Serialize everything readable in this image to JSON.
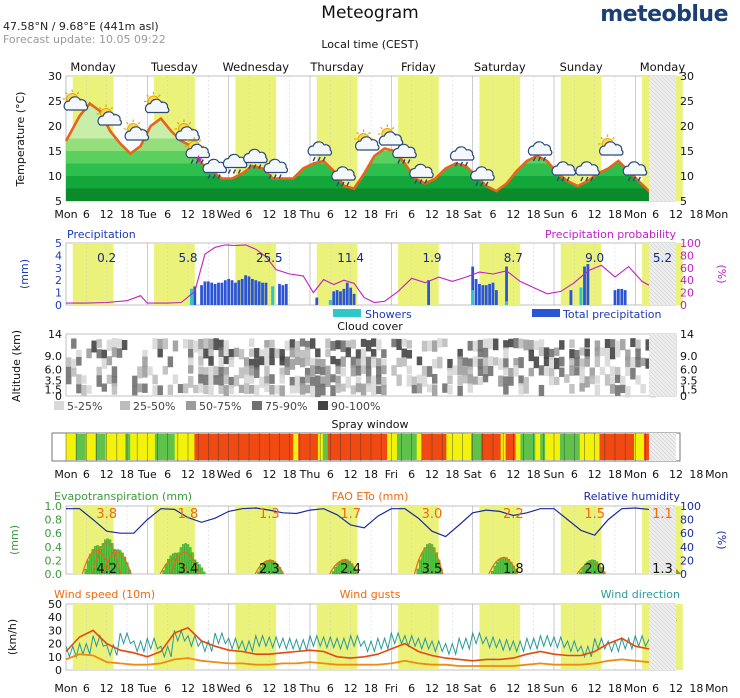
{
  "header": {
    "title": "Meteogram",
    "coords": "47.58°N / 9.68°E (441m asl)",
    "forecast_update": "Forecast update: 10.05 09:22",
    "brand": "meteoblue",
    "local_time": "Local time (CEST)"
  },
  "days": [
    "Monday",
    "Tuesday",
    "Wednesday",
    "Thursday",
    "Friday",
    "Saturday",
    "Sunday",
    "Monday"
  ],
  "time_axis": {
    "start_hour": 6,
    "end_hour": 186,
    "label_step": 6,
    "labels": [
      "Mon",
      "6",
      "12",
      "18",
      "Tue",
      "6",
      "12",
      "18",
      "Wed",
      "6",
      "12",
      "18",
      "Thu",
      "6",
      "12",
      "18",
      "Fri",
      "6",
      "12",
      "18",
      "Sat",
      "6",
      "12",
      "18",
      "Sun",
      "6",
      "12",
      "18",
      "Mon",
      "6",
      "12",
      "18",
      "Mon"
    ]
  },
  "colors": {
    "day_band": "#eaf27a",
    "temp_line": "#e8641a",
    "temp_bands": [
      "#0a8a2a",
      "#13a63a",
      "#2cbf4d",
      "#5ad05f",
      "#95de7c",
      "#c8eeaa"
    ],
    "precip_bar": "#2c55d6",
    "showers_bar": "#2ec8c8",
    "precip_prob_line": "#c020c8",
    "cloud_bands": [
      "#d8d8d8",
      "#bcbcbc",
      "#9c9c9c",
      "#707070",
      "#444444"
    ],
    "spray": {
      "G": "#5fc24a",
      "Y": "#f2f20a",
      "R": "#f04a12"
    },
    "et_fill": "#4fc93e",
    "eto_line": "#ee6a10",
    "humidity_line": "#1a2aa0",
    "wind_speed_line": "#f08a10",
    "wind_gust_line": "#e14b10",
    "wind_dir_line": "#2a9a9a",
    "title_green": "#3a9a3a",
    "title_orange": "#ee6a10",
    "title_navy": "#1a2aa0",
    "title_teal": "#2a9a9a",
    "title_blue": "#1a3ab8",
    "title_magenta": "#c020c8"
  },
  "chart_data": [
    {
      "id": "temperature",
      "type": "line",
      "ylabel": "Temperature (°C)",
      "ylim": [
        5,
        30
      ],
      "yticks": [
        5,
        10,
        15,
        20,
        25,
        30
      ],
      "x": [
        6,
        10,
        13,
        16,
        19,
        22,
        25,
        28,
        31,
        34,
        37,
        40,
        43,
        46,
        49,
        52,
        55,
        58,
        61,
        64,
        67,
        70,
        73,
        76,
        79,
        82,
        85,
        88,
        91,
        94,
        97,
        100,
        103,
        106,
        109,
        112,
        115,
        118,
        121,
        124,
        127,
        130,
        133,
        136,
        139,
        142,
        145,
        148,
        151,
        154,
        157,
        160,
        163,
        166,
        169,
        172,
        175,
        178,
        181,
        184
      ],
      "values": [
        17,
        22,
        24.5,
        23,
        19,
        16.5,
        14.5,
        16,
        20,
        21.5,
        19,
        17,
        16,
        12.5,
        11,
        9.5,
        9.5,
        10.5,
        12,
        11.5,
        9.5,
        9.5,
        9.5,
        11.5,
        12.5,
        13,
        11,
        8,
        7.5,
        10.5,
        14,
        15.5,
        15,
        12.5,
        9.5,
        8.5,
        9.5,
        11.5,
        12.5,
        12,
        10,
        8,
        7,
        8.5,
        11,
        13,
        14,
        13,
        10.5,
        9,
        8,
        9,
        10.5,
        11.5,
        13,
        11,
        9,
        7,
        8,
        10
      ],
      "weather_icons": [
        {
          "x": 9,
          "icon": "sun-cloud-icon"
        },
        {
          "x": 19,
          "icon": "sun-cloud-icon"
        },
        {
          "x": 27,
          "icon": "sun-cloud-icon"
        },
        {
          "x": 33,
          "icon": "sun-cloud-icon"
        },
        {
          "x": 42,
          "icon": "sun-cloud-icon"
        },
        {
          "x": 45,
          "icon": "thunder-rain-icon"
        },
        {
          "x": 50,
          "icon": "cloud-rain-icon"
        },
        {
          "x": 56,
          "icon": "cloud-rain-icon"
        },
        {
          "x": 62,
          "icon": "cloud-rain-icon"
        },
        {
          "x": 68,
          "icon": "cloud-rain-icon"
        },
        {
          "x": 81,
          "icon": "cloud-rain-icon"
        },
        {
          "x": 88,
          "icon": "cloud-rain-icon"
        },
        {
          "x": 95,
          "icon": "sun-cloud-icon"
        },
        {
          "x": 102,
          "icon": "sun-cloud-icon"
        },
        {
          "x": 106,
          "icon": "cloud-rain-icon"
        },
        {
          "x": 111,
          "icon": "cloud-rain-icon"
        },
        {
          "x": 123,
          "icon": "cloud-rain-icon"
        },
        {
          "x": 129,
          "icon": "cloud-rain-icon"
        },
        {
          "x": 146,
          "icon": "cloud-rain-icon"
        },
        {
          "x": 153,
          "icon": "cloud-rain-icon"
        },
        {
          "x": 160,
          "icon": "cloud-rain-icon"
        },
        {
          "x": 167,
          "icon": "sun-cloud-icon"
        },
        {
          "x": 174,
          "icon": "cloud-rain-icon"
        }
      ]
    },
    {
      "id": "precipitation",
      "type": "bar",
      "title": "Precipitation",
      "title_right": "Precipitation probability",
      "ylabel": "(mm)",
      "ylabel_right": "(%)",
      "ylim": [
        0,
        5
      ],
      "yticks": [
        0,
        1,
        2,
        3,
        4,
        5
      ],
      "yticks_right": [
        0,
        20,
        40,
        60,
        80,
        100
      ],
      "daily_totals": [
        {
          "x": 18,
          "label": "0.2"
        },
        {
          "x": 42,
          "label": "5.8"
        },
        {
          "x": 66,
          "label": "25.5"
        },
        {
          "x": 90,
          "label": "11.4"
        },
        {
          "x": 114,
          "label": "1.9"
        },
        {
          "x": 138,
          "label": "8.7"
        },
        {
          "x": 162,
          "label": "9.0"
        },
        {
          "x": 182,
          "label": "5.2"
        }
      ],
      "bars": [
        [
          43,
          1.3
        ],
        [
          44,
          1.5
        ],
        [
          46,
          1.6
        ],
        [
          47,
          1.9
        ],
        [
          48,
          1.9
        ],
        [
          49,
          1.8
        ],
        [
          50,
          1.7
        ],
        [
          51,
          1.8
        ],
        [
          52,
          1.8
        ],
        [
          53,
          2.0
        ],
        [
          54,
          2.1
        ],
        [
          55,
          2.0
        ],
        [
          56,
          1.8
        ],
        [
          57,
          2.0
        ],
        [
          58,
          2.1
        ],
        [
          59,
          2.4
        ],
        [
          60,
          2.3
        ],
        [
          61,
          2.1
        ],
        [
          62,
          2.0
        ],
        [
          63,
          1.9
        ],
        [
          64,
          1.8
        ],
        [
          65,
          1.8
        ],
        [
          67,
          1.5
        ],
        [
          69,
          1.7
        ],
        [
          70,
          1.6
        ],
        [
          71,
          1.7
        ],
        [
          80,
          0.6
        ],
        [
          84,
          0.4
        ],
        [
          85,
          1.1
        ],
        [
          86,
          1.2
        ],
        [
          87,
          1.1
        ],
        [
          88,
          1.3
        ],
        [
          89,
          1.8
        ],
        [
          90,
          1.4
        ],
        [
          91,
          0.9
        ],
        [
          113,
          2.0
        ],
        [
          126,
          3.1
        ],
        [
          127,
          2.1
        ],
        [
          128,
          1.7
        ],
        [
          129,
          1.6
        ],
        [
          130,
          1.6
        ],
        [
          131,
          1.7
        ],
        [
          132,
          1.8
        ],
        [
          133,
          1.2
        ],
        [
          136,
          3.1
        ],
        [
          155,
          1.2
        ],
        [
          158,
          1.4
        ],
        [
          159,
          3.1
        ],
        [
          160,
          3.3
        ],
        [
          168,
          1.2
        ],
        [
          169,
          1.3
        ],
        [
          170,
          1.3
        ],
        [
          171,
          1.2
        ],
        [
          179,
          1.0
        ],
        [
          180,
          0.6
        ]
      ],
      "showers": [
        [
          43,
          1.3
        ],
        [
          67,
          1.5
        ],
        [
          84,
          0.4
        ],
        [
          126,
          1.2
        ],
        [
          136,
          0.3
        ],
        [
          158,
          1.4
        ],
        [
          180,
          0.5
        ]
      ],
      "probability": {
        "x": [
          6,
          12,
          18,
          24,
          28,
          30,
          33,
          36,
          40,
          44,
          47,
          50,
          53,
          56,
          59,
          62,
          65,
          68,
          72,
          76,
          79,
          82,
          85,
          88,
          91,
          94,
          97,
          100,
          104,
          108,
          112,
          116,
          120,
          124,
          128,
          132,
          136,
          140,
          144,
          148,
          152,
          156,
          160,
          164,
          168,
          172,
          176,
          180,
          184
        ],
        "values": [
          3,
          3,
          4,
          7,
          15,
          3,
          3,
          3,
          4,
          22,
          82,
          93,
          97,
          96,
          97,
          90,
          78,
          57,
          50,
          47,
          20,
          41,
          33,
          40,
          35,
          12,
          4,
          6,
          22,
          43,
          36,
          45,
          38,
          45,
          53,
          50,
          55,
          38,
          28,
          18,
          22,
          36,
          55,
          64,
          45,
          62,
          38,
          26,
          8
        ]
      },
      "legend": [
        "Showers",
        "Total precipitation"
      ]
    },
    {
      "id": "cloud_cover",
      "type": "heatmap",
      "title": "Cloud cover",
      "ylabel": "Altitude (km)",
      "ylim": [
        0,
        14
      ],
      "yticks": [
        "0",
        "1.5",
        "3.5",
        "6.0",
        "9.0",
        "14"
      ],
      "legend": [
        "5-25%",
        "25-50%",
        "50-75%",
        "75-90%",
        "90-100%"
      ]
    },
    {
      "id": "spray_window",
      "type": "table",
      "title": "Spray window",
      "codes": "YYGGYYGGYYYYGYYYYYGGGGYYYYRRRRRRRRRRRRRRRRRRRRYRRRRYGRRRRRRRRRRRRYYGGGGYRRRRRYYYYYGGRRRRYRRYGGGYGYYYGGGGYYYYRRRRRRRYYR"
    },
    {
      "id": "evapotranspiration",
      "type": "area",
      "title": "Evapotranspiration (mm)",
      "title_mid": "FAO ETo (mm)",
      "title_right": "Relative humidity",
      "ylabel": "(mm)",
      "ylabel_right": "(%)",
      "ylim": [
        0,
        1.0
      ],
      "yticks": [
        "0.0",
        "0.2",
        "0.4",
        "0.6",
        "0.8",
        "1.0"
      ],
      "yticks_right": [
        0,
        20,
        40,
        60,
        80,
        100
      ],
      "eto_totals": [
        {
          "x": 18,
          "label": "3.8"
        },
        {
          "x": 42,
          "label": "1.8"
        },
        {
          "x": 66,
          "label": "1.3"
        },
        {
          "x": 90,
          "label": "1.7"
        },
        {
          "x": 114,
          "label": "3.0"
        },
        {
          "x": 138,
          "label": "2.2"
        },
        {
          "x": 162,
          "label": "1.5"
        },
        {
          "x": 182,
          "label": "1.1"
        }
      ],
      "et_totals": [
        {
          "x": 18,
          "label": "4.2"
        },
        {
          "x": 42,
          "label": "3.4"
        },
        {
          "x": 66,
          "label": "2.3"
        },
        {
          "x": 90,
          "label": "2.4"
        },
        {
          "x": 114,
          "label": "3.5"
        },
        {
          "x": 138,
          "label": "1.8"
        },
        {
          "x": 162,
          "label": "2.0"
        },
        {
          "x": 182,
          "label": "1.3"
        }
      ],
      "et_peaks": [
        [
          15,
          0.42
        ],
        [
          18,
          0.52
        ],
        [
          21,
          0.36
        ],
        [
          38,
          0.31
        ],
        [
          41,
          0.45
        ],
        [
          43,
          0.2
        ],
        [
          66,
          0.21
        ],
        [
          88,
          0.22
        ],
        [
          113,
          0.45
        ],
        [
          135,
          0.25
        ],
        [
          161,
          0.21
        ],
        [
          183,
          0.13
        ]
      ],
      "eto_peaks": [
        [
          15,
          0.35
        ],
        [
          18,
          0.46
        ],
        [
          21,
          0.32
        ],
        [
          38,
          0.22
        ],
        [
          41,
          0.32
        ],
        [
          66,
          0.2
        ],
        [
          88,
          0.2
        ],
        [
          113,
          0.4
        ],
        [
          135,
          0.24
        ],
        [
          161,
          0.16
        ],
        [
          183,
          0.12
        ]
      ],
      "humidity": {
        "x": [
          6,
          10,
          14,
          18,
          22,
          26,
          30,
          34,
          38,
          42,
          46,
          50,
          54,
          58,
          62,
          66,
          70,
          74,
          78,
          82,
          86,
          90,
          94,
          98,
          102,
          106,
          110,
          114,
          118,
          122,
          126,
          130,
          134,
          138,
          142,
          146,
          150,
          154,
          158,
          162,
          166,
          170,
          174,
          178,
          182,
          186
        ],
        "values": [
          96,
          96,
          80,
          63,
          60,
          60,
          80,
          96,
          95,
          83,
          76,
          82,
          92,
          96,
          97,
          94,
          90,
          89,
          94,
          96,
          87,
          72,
          68,
          85,
          96,
          96,
          82,
          63,
          55,
          72,
          90,
          94,
          92,
          86,
          90,
          96,
          96,
          80,
          64,
          57,
          80,
          96,
          97,
          95,
          73,
          74
        ]
      }
    },
    {
      "id": "wind",
      "type": "line",
      "title": "Wind speed (10m)",
      "title_mid": "Wind gusts",
      "title_right": "Wind direction",
      "ylabel": "(km/h)",
      "ylim": [
        0,
        50
      ],
      "yticks": [
        0,
        10,
        20,
        30,
        40,
        50
      ],
      "x": [
        6,
        10,
        14,
        18,
        22,
        26,
        30,
        34,
        38,
        42,
        46,
        50,
        54,
        58,
        62,
        66,
        70,
        74,
        78,
        82,
        86,
        90,
        94,
        98,
        102,
        106,
        110,
        114,
        118,
        122,
        126,
        130,
        134,
        138,
        142,
        146,
        150,
        154,
        158,
        162,
        166,
        170,
        174,
        178,
        182,
        186
      ],
      "speed": [
        8,
        12,
        11,
        6,
        5,
        4,
        4,
        5,
        8,
        9,
        7,
        6,
        5,
        5,
        4,
        4,
        5,
        5,
        6,
        5,
        4,
        4,
        4,
        4,
        5,
        7,
        5,
        4,
        4,
        3,
        3,
        3,
        3,
        3,
        4,
        5,
        4,
        4,
        4,
        5,
        7,
        8,
        7,
        6,
        9,
        10
      ],
      "gusts": [
        14,
        25,
        30,
        20,
        15,
        13,
        10,
        14,
        28,
        32,
        22,
        18,
        15,
        14,
        12,
        12,
        13,
        14,
        15,
        14,
        10,
        9,
        10,
        12,
        16,
        20,
        14,
        11,
        9,
        8,
        7,
        8,
        8,
        9,
        12,
        14,
        12,
        11,
        11,
        14,
        20,
        24,
        18,
        16,
        24,
        38
      ],
      "direction_zigzag": [
        14,
        16,
        22,
        15,
        24,
        18,
        20,
        14,
        26,
        22,
        18,
        24,
        20,
        18,
        22,
        21,
        20,
        19,
        22,
        21,
        20,
        22,
        18,
        20,
        24,
        22,
        20,
        18,
        16,
        20,
        24,
        21,
        19,
        18,
        20,
        22,
        21,
        18,
        14,
        20,
        18,
        20,
        22,
        19,
        24,
        20
      ]
    }
  ]
}
